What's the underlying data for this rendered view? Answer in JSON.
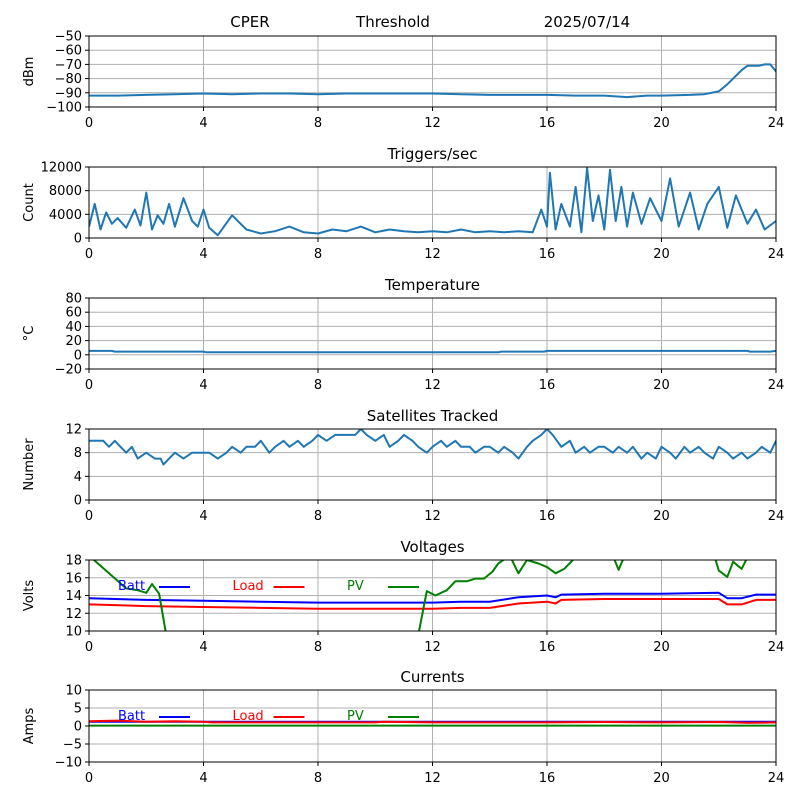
{
  "header": {
    "station": "CPER",
    "mode": "Threshold",
    "date": "2025/07/14"
  },
  "chart_data": [
    {
      "type": "line",
      "title": "",
      "xlabel": "",
      "ylabel": "dBm",
      "xlim": [
        0,
        24
      ],
      "ylim": [
        -100,
        -50
      ],
      "xticks": [
        "0",
        "4",
        "8",
        "12",
        "16",
        "20",
        "24"
      ],
      "yticks": [
        "−50",
        "−60",
        "−70",
        "−80",
        "−90",
        "−100"
      ],
      "grid": true,
      "series": [
        {
          "color": "#1f77b4",
          "x": [
            0,
            1,
            2,
            3,
            4,
            5,
            6,
            7,
            8,
            9,
            10,
            11,
            12,
            13,
            14,
            15,
            16,
            17,
            18,
            18.8,
            19.5,
            20,
            21,
            21.5,
            22,
            22.3,
            22.6,
            22.8,
            23,
            23.4,
            23.6,
            23.8,
            24
          ],
          "y": [
            -92,
            -92,
            -91.5,
            -91,
            -90.5,
            -91,
            -90.5,
            -90.5,
            -91,
            -90.5,
            -90.5,
            -90.5,
            -90.5,
            -91,
            -91.5,
            -91.5,
            -91.5,
            -92,
            -92,
            -93,
            -92,
            -92,
            -91.5,
            -91,
            -89,
            -84,
            -78,
            -74,
            -71,
            -71,
            -70,
            -70,
            -75
          ]
        }
      ]
    },
    {
      "type": "line",
      "title": "Triggers/sec",
      "xlabel": "",
      "ylabel": "Count",
      "xlim": [
        0,
        24
      ],
      "ylim": [
        0,
        12500
      ],
      "xticks": [
        "0",
        "4",
        "8",
        "12",
        "16",
        "20",
        "24"
      ],
      "yticks": [
        "12000",
        "8000",
        "4000",
        "0"
      ],
      "grid": true,
      "series": [
        {
          "color": "#1f77b4",
          "x": [
            0,
            0.2,
            0.4,
            0.6,
            0.8,
            1,
            1.3,
            1.6,
            1.8,
            2,
            2.2,
            2.4,
            2.6,
            2.8,
            3,
            3.3,
            3.6,
            3.8,
            4,
            4.2,
            4.5,
            5,
            5.5,
            6,
            6.5,
            7,
            7.5,
            8,
            8.5,
            9,
            9.5,
            10,
            10.5,
            11,
            11.5,
            12,
            12.5,
            13,
            13.5,
            14,
            14.5,
            15,
            15.5,
            15.8,
            16,
            16.1,
            16.3,
            16.5,
            16.8,
            17,
            17.2,
            17.4,
            17.6,
            17.8,
            18,
            18.2,
            18.4,
            18.6,
            18.8,
            19,
            19.3,
            19.6,
            20,
            20.3,
            20.6,
            21,
            21.3,
            21.6,
            22,
            22.3,
            22.6,
            23,
            23.3,
            23.6,
            24
          ],
          "y": [
            2000,
            6000,
            1500,
            4500,
            2500,
            3500,
            1800,
            5000,
            2200,
            8000,
            1500,
            4000,
            2500,
            6000,
            2000,
            7000,
            3000,
            2000,
            5000,
            1800,
            500,
            4000,
            1500,
            800,
            1200,
            2000,
            1000,
            800,
            1500,
            1200,
            2000,
            1000,
            1500,
            1200,
            1000,
            1200,
            1000,
            1500,
            1000,
            1200,
            1000,
            1200,
            1000,
            5000,
            2000,
            11500,
            1500,
            6000,
            2000,
            9000,
            1000,
            12300,
            3000,
            7500,
            1500,
            12000,
            3000,
            9000,
            2000,
            8000,
            2500,
            7000,
            3000,
            10500,
            2000,
            8000,
            1500,
            6000,
            9000,
            1800,
            7500,
            2500,
            5000,
            1500,
            3000
          ]
        }
      ]
    },
    {
      "type": "line",
      "title": "Temperature",
      "xlabel": "",
      "ylabel": "°C",
      "xlim": [
        0,
        24
      ],
      "ylim": [
        -20,
        80
      ],
      "xticks": [
        "0",
        "4",
        "8",
        "12",
        "16",
        "20",
        "24"
      ],
      "yticks": [
        "80",
        "60",
        "40",
        "20",
        "0",
        "−20"
      ],
      "grid": true,
      "series": [
        {
          "color": "#1f77b4",
          "x": [
            0,
            0.8,
            0.9,
            4,
            4.1,
            14.3,
            14.4,
            15.9,
            16,
            23,
            23.1,
            23.8,
            24
          ],
          "y": [
            5.5,
            5.5,
            4.5,
            4.5,
            3.5,
            3.5,
            4.5,
            4.5,
            5.5,
            5.5,
            4.5,
            4.5,
            5.5
          ]
        }
      ]
    },
    {
      "type": "line",
      "title": "Satellites Tracked",
      "xlabel": "",
      "ylabel": "Number",
      "xlim": [
        0,
        24
      ],
      "ylim": [
        0,
        12
      ],
      "xticks": [
        "0",
        "4",
        "8",
        "12",
        "16",
        "20",
        "24"
      ],
      "yticks": [
        "12",
        "8",
        "4",
        "0"
      ],
      "grid": true,
      "series": [
        {
          "color": "#1f77b4",
          "x": [
            0,
            0.5,
            0.7,
            0.9,
            1.1,
            1.3,
            1.5,
            1.7,
            2,
            2.3,
            2.5,
            2.6,
            2.8,
            3,
            3.3,
            3.6,
            3.8,
            4.2,
            4.5,
            4.8,
            5,
            5.3,
            5.5,
            5.8,
            6,
            6.3,
            6.5,
            6.8,
            7,
            7.3,
            7.5,
            7.8,
            8,
            8.3,
            8.6,
            9,
            9.3,
            9.5,
            9.7,
            10,
            10.3,
            10.5,
            10.8,
            11,
            11.3,
            11.5,
            11.8,
            12,
            12.3,
            12.5,
            12.8,
            13,
            13.3,
            13.5,
            13.8,
            14,
            14.3,
            14.5,
            14.8,
            15,
            15.3,
            15.5,
            15.8,
            16,
            16.2,
            16.5,
            16.8,
            17,
            17.3,
            17.5,
            17.8,
            18,
            18.3,
            18.5,
            18.8,
            19,
            19.3,
            19.5,
            19.8,
            20,
            20.3,
            20.5,
            20.8,
            21,
            21.3,
            21.5,
            21.8,
            22,
            22.3,
            22.5,
            22.8,
            23,
            23.3,
            23.5,
            23.8,
            24
          ],
          "y": [
            10,
            10,
            9,
            10,
            9,
            8,
            9,
            7,
            8,
            7,
            7,
            6,
            7,
            8,
            7,
            8,
            8,
            8,
            7,
            8,
            9,
            8,
            9,
            9,
            10,
            8,
            9,
            10,
            9,
            10,
            9,
            10,
            11,
            10,
            11,
            11,
            11,
            12,
            11,
            10,
            11,
            9,
            10,
            11,
            10,
            9,
            8,
            9,
            10,
            9,
            10,
            9,
            9,
            8,
            9,
            9,
            8,
            9,
            8,
            7,
            9,
            10,
            11,
            12,
            11,
            9,
            10,
            8,
            9,
            8,
            9,
            9,
            8,
            9,
            8,
            9,
            7,
            8,
            7,
            9,
            8,
            7,
            9,
            8,
            9,
            8,
            7,
            9,
            8,
            7,
            8,
            7,
            8,
            9,
            8,
            10
          ]
        }
      ]
    },
    {
      "type": "line",
      "title": "Voltages",
      "xlabel": "",
      "ylabel": "Volts",
      "xlim": [
        0,
        24
      ],
      "ylim": [
        10,
        18
      ],
      "xticks": [
        "0",
        "4",
        "8",
        "12",
        "16",
        "20",
        "24"
      ],
      "yticks": [
        "18",
        "16",
        "14",
        "12",
        "10"
      ],
      "grid": true,
      "legend": "top-left",
      "series": [
        {
          "name": "Batt",
          "color": "#0000ff",
          "x": [
            0,
            2,
            4,
            6,
            8,
            10,
            11,
            12,
            13,
            14,
            15,
            16,
            16.3,
            16.5,
            18,
            20,
            22,
            22.3,
            22.8,
            23.3,
            24
          ],
          "y": [
            13.7,
            13.5,
            13.4,
            13.3,
            13.2,
            13.2,
            13.2,
            13.2,
            13.3,
            13.3,
            13.8,
            14.0,
            13.8,
            14.1,
            14.2,
            14.2,
            14.3,
            13.7,
            13.7,
            14.1,
            14.1
          ]
        },
        {
          "name": "Load",
          "color": "#ff0000",
          "x": [
            0,
            2,
            4,
            6,
            8,
            10,
            11,
            12,
            13,
            14,
            15,
            16,
            16.3,
            16.5,
            18,
            20,
            22,
            22.3,
            22.8,
            23.3,
            24
          ],
          "y": [
            13.0,
            12.8,
            12.7,
            12.6,
            12.5,
            12.5,
            12.5,
            12.5,
            12.6,
            12.6,
            13.1,
            13.3,
            13.1,
            13.5,
            13.6,
            13.6,
            13.6,
            13.0,
            13.0,
            13.5,
            13.5
          ]
        },
        {
          "name": "PV",
          "color": "#008000",
          "x": [
            0,
            0.7,
            1.3,
            1.7,
            2.0,
            2.2,
            2.45,
            2.7,
            11.5,
            11.8,
            12.1,
            12.5,
            12.8,
            13.2,
            13.5,
            13.8,
            14.1,
            14.3,
            14.7,
            15.0,
            15.3,
            15.7,
            16.0,
            16.3,
            16.6,
            16.9,
            17.5,
            18.0,
            18.3,
            18.5,
            18.7,
            19.2,
            20.0,
            21.0,
            21.8,
            22.0,
            22.3,
            22.5,
            22.8,
            23.0,
            23.3,
            24
          ],
          "y": [
            18.5,
            16.5,
            14.8,
            14.6,
            14.3,
            15.3,
            14.2,
            9.5,
            9.5,
            14.5,
            14.0,
            14.6,
            15.6,
            15.6,
            15.9,
            15.9,
            16.7,
            17.6,
            18.5,
            16.5,
            18.0,
            17.6,
            17.2,
            16.5,
            17.0,
            18.0,
            19.0,
            19.0,
            18.5,
            16.9,
            18.4,
            19.0,
            19.0,
            19.0,
            19.0,
            16.8,
            16.1,
            17.8,
            17.0,
            18.3,
            19.0,
            19.0
          ]
        }
      ]
    },
    {
      "type": "line",
      "title": "Currents",
      "xlabel": "",
      "ylabel": "Amps",
      "xlim": [
        0,
        24
      ],
      "ylim": [
        -10,
        10
      ],
      "xticks": [
        "0",
        "4",
        "8",
        "12",
        "16",
        "20",
        "24"
      ],
      "yticks": [
        "10",
        "5",
        "0",
        "−5",
        "−10"
      ],
      "grid": true,
      "legend": "top-left",
      "series": [
        {
          "name": "Batt",
          "color": "#0000ff",
          "x": [
            0,
            24
          ],
          "y": [
            1.2,
            1.2
          ]
        },
        {
          "name": "Load",
          "color": "#ff0000",
          "x": [
            0,
            1,
            2,
            3,
            4,
            4.3,
            6,
            8,
            10,
            10.3,
            12,
            14,
            16,
            18,
            20,
            22,
            23,
            24
          ],
          "y": [
            1.3,
            1.5,
            1.2,
            1.3,
            1.2,
            1.0,
            1.0,
            1.0,
            1.0,
            1.2,
            1.0,
            1.0,
            1.0,
            1.1,
            1.0,
            1.1,
            0.9,
            1.0
          ]
        },
        {
          "name": "PV",
          "color": "#008000",
          "x": [
            0,
            24
          ],
          "y": [
            0.1,
            0.1
          ]
        }
      ]
    }
  ]
}
